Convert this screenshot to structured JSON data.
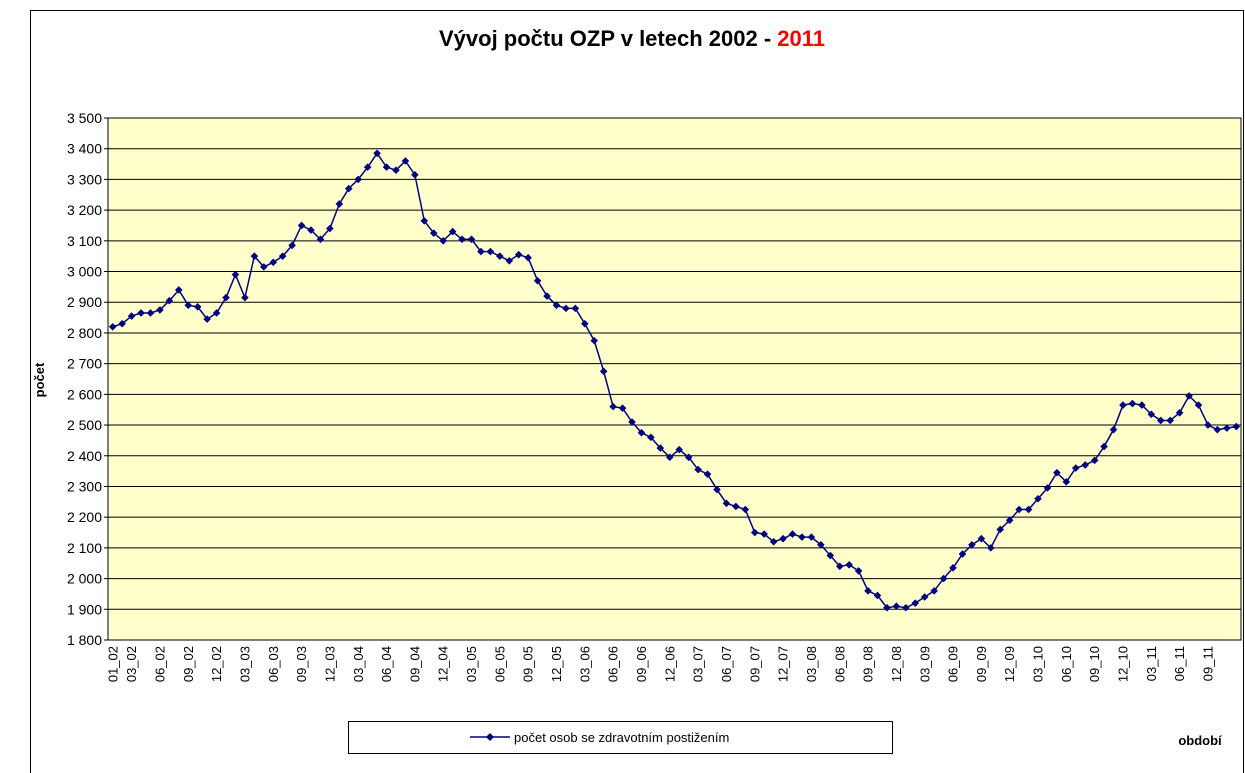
{
  "chart_data": {
    "type": "line",
    "title": [
      "Vývoj počtu OZP v letech 2002 -",
      "2011"
    ],
    "title_colors": [
      "#000000",
      "#ff0000"
    ],
    "xlabel": "období",
    "ylabel": "počet",
    "categories": [
      "01_02",
      null,
      "03_02",
      null,
      null,
      "06_02",
      null,
      null,
      "09_02",
      null,
      null,
      "12_02",
      null,
      null,
      "03_03",
      null,
      null,
      "06_03",
      null,
      null,
      "09_03",
      null,
      null,
      "12_03",
      null,
      null,
      "03_04",
      null,
      null,
      "06_04",
      null,
      null,
      "09_04",
      null,
      null,
      "12_04",
      null,
      null,
      "03_05",
      null,
      null,
      "06_05",
      null,
      null,
      "09_05",
      null,
      null,
      "12_05",
      null,
      null,
      "03_06",
      null,
      null,
      "06_06",
      null,
      null,
      "09_06",
      null,
      null,
      "12_06",
      null,
      null,
      "03_07",
      null,
      null,
      "06_07",
      null,
      null,
      "09_07",
      null,
      null,
      "12_07",
      null,
      null,
      "03_08",
      null,
      null,
      "06_08",
      null,
      null,
      "09_08",
      null,
      null,
      "12_08",
      null,
      null,
      "03_09",
      null,
      null,
      "06_09",
      null,
      null,
      "09_09",
      null,
      null,
      "12_09",
      null,
      null,
      "03_10",
      null,
      null,
      "06_10",
      null,
      null,
      "09_10",
      null,
      null,
      "12_10",
      null,
      null,
      "03_11",
      null,
      null,
      "06_11",
      null,
      null,
      "09_11",
      null,
      null,
      null
    ],
    "series": [
      {
        "name": "počet osob se zdravotním postižením",
        "color": "#000080",
        "values": [
          2820,
          2830,
          2855,
          2865,
          2865,
          2875,
          2905,
          2940,
          2890,
          2885,
          2845,
          2865,
          2915,
          2990,
          2915,
          3050,
          3015,
          3030,
          3050,
          3085,
          3150,
          3135,
          3105,
          3140,
          3220,
          3270,
          3300,
          3340,
          3385,
          3340,
          3330,
          3360,
          3315,
          3165,
          3125,
          3100,
          3130,
          3105,
          3105,
          3065,
          3065,
          3050,
          3035,
          3055,
          3045,
          2970,
          2920,
          2890,
          2880,
          2880,
          2830,
          2775,
          2675,
          2560,
          2555,
          2510,
          2475,
          2460,
          2425,
          2395,
          2420,
          2395,
          2355,
          2340,
          2290,
          2245,
          2235,
          2225,
          2150,
          2145,
          2120,
          2130,
          2145,
          2135,
          2135,
          2110,
          2075,
          2040,
          2045,
          2025,
          1960,
          1945,
          1905,
          1910,
          1905,
          1920,
          1940,
          1960,
          2000,
          2035,
          2080,
          2110,
          2130,
          2100,
          2160,
          2190,
          2225,
          2225,
          2260,
          2295,
          2345,
          2315,
          2360,
          2370,
          2385,
          2430,
          2485,
          2565,
          2570,
          2565,
          2535,
          2515,
          2515,
          2540,
          2595,
          2565,
          2500,
          2485,
          2490,
          2495
        ]
      }
    ],
    "ylim": [
      1800,
      3500
    ],
    "yticks": [
      {
        "value": 1800,
        "label": "1 800"
      },
      {
        "value": 1900,
        "label": "1 900"
      },
      {
        "value": 2000,
        "label": "2 000"
      },
      {
        "value": 2100,
        "label": "2 100"
      },
      {
        "value": 2200,
        "label": "2 200"
      },
      {
        "value": 2300,
        "label": "2 300"
      },
      {
        "value": 2400,
        "label": "2 400"
      },
      {
        "value": 2500,
        "label": "2 500"
      },
      {
        "value": 2600,
        "label": "2 600"
      },
      {
        "value": 2700,
        "label": "2 700"
      },
      {
        "value": 2800,
        "label": "2 800"
      },
      {
        "value": 2900,
        "label": "2 900"
      },
      {
        "value": 3000,
        "label": "3 000"
      },
      {
        "value": 3100,
        "label": "3 100"
      },
      {
        "value": 3200,
        "label": "3 200"
      },
      {
        "value": 3300,
        "label": "3 300"
      },
      {
        "value": 3400,
        "label": "3 400"
      },
      {
        "value": 3500,
        "label": "3 500"
      }
    ],
    "grid": true,
    "plot_background": "#ffffcc",
    "legend": "bottom"
  }
}
